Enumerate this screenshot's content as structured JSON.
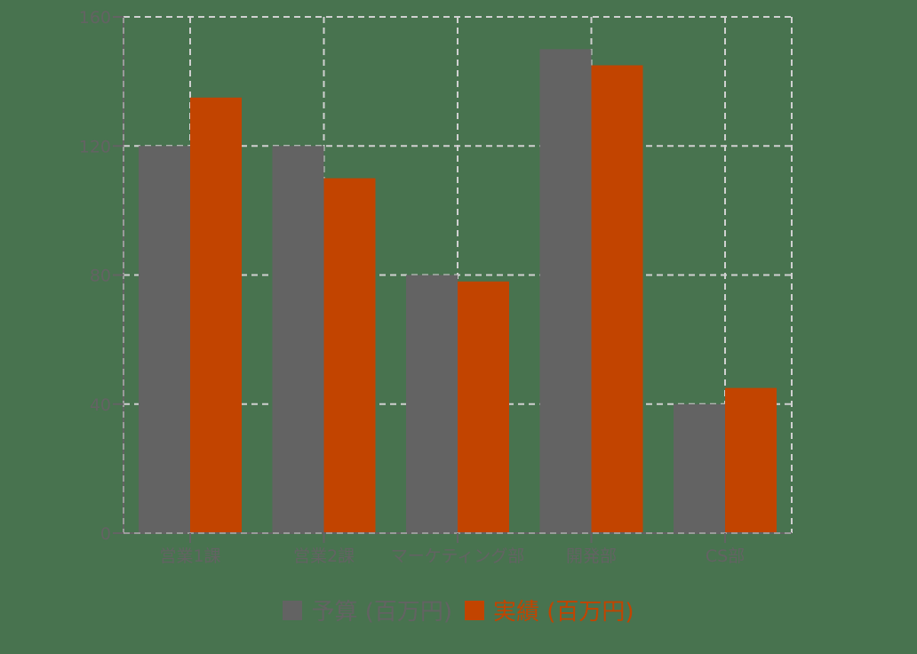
{
  "chart_data": {
    "type": "bar",
    "title": "",
    "xlabel": "",
    "ylabel": "",
    "categories": [
      "営業1課",
      "営業2課",
      "マーケティング部",
      "開発部",
      "CS部"
    ],
    "series": [
      {
        "name": "予算 (百万円)",
        "color": "#636363",
        "values": [
          120,
          120,
          80,
          150,
          40
        ]
      },
      {
        "name": "実績 (百万円)",
        "color": "#c24400",
        "values": [
          135,
          110,
          78,
          145,
          45
        ]
      }
    ],
    "ylim": [
      0,
      160
    ],
    "yticks": [
      0,
      40,
      80,
      120,
      160
    ],
    "grid": true,
    "legend_position": "bottom"
  },
  "colors": {
    "background": "#48734f",
    "axis": "#636363",
    "grid": "#d0d0d0",
    "tick_label": "#636363"
  },
  "legend": {
    "items": [
      {
        "label": "予算 (百万円)",
        "color": "#636363"
      },
      {
        "label": "実績 (百万円)",
        "color": "#c24400"
      }
    ]
  }
}
